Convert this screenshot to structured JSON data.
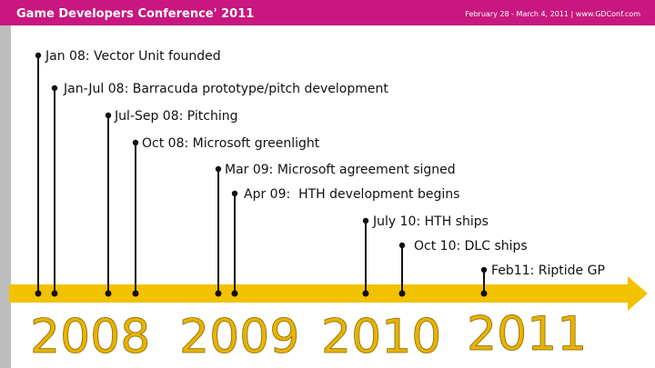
{
  "header": {
    "title": "Game Developers Conference' 2011",
    "subtitle": "February 28 - March 4, 2011 | www.GDConf.com"
  },
  "events": [
    {
      "label": "Jan 08: Vector Unit founded"
    },
    {
      "label": "Jan-Jul 08: Barracuda prototype/pitch development"
    },
    {
      "label": "Jul-Sep 08: Pitching"
    },
    {
      "label": "Oct 08: Microsoft greenlight"
    },
    {
      "label": "Mar 09: Microsoft agreement signed"
    },
    {
      "label": "Apr 09:  HTH development begins"
    },
    {
      "label": "July 10: HTH ships"
    },
    {
      "label": "Oct 10: DLC ships"
    },
    {
      "label": "Feb11: Riptide GP"
    }
  ],
  "years": [
    "2008",
    "2009",
    "2010",
    "2011"
  ]
}
